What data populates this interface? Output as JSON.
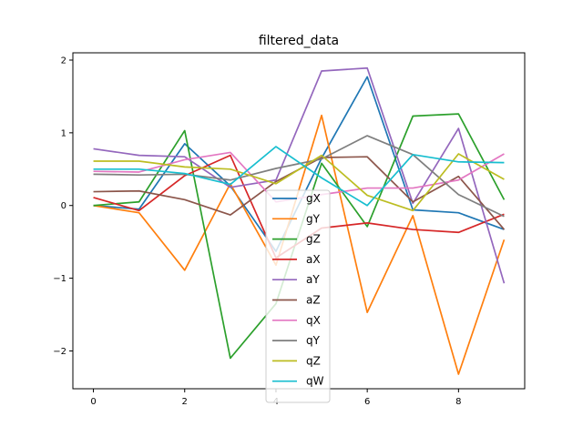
{
  "chart_data": {
    "type": "line",
    "title": "filtered_data",
    "xlabel": "",
    "ylabel": "",
    "xlim": [
      -0.45,
      9.45
    ],
    "ylim": [
      -2.52,
      2.1
    ],
    "xticks": [
      0,
      2,
      4,
      6,
      8
    ],
    "yticks": [
      -2,
      -1,
      0,
      1,
      2
    ],
    "grid": false,
    "legend_position": "bottom-center",
    "x": [
      0,
      1,
      2,
      3,
      4,
      5,
      6,
      7,
      8,
      9
    ],
    "series": [
      {
        "name": "gX",
        "color": "#1f77b4",
        "values": [
          0.0,
          -0.05,
          0.85,
          0.27,
          -0.63,
          0.65,
          1.77,
          -0.06,
          -0.1,
          -0.33
        ]
      },
      {
        "name": "gY",
        "color": "#ff7f0e",
        "values": [
          0.0,
          -0.1,
          -0.89,
          0.3,
          -0.82,
          1.24,
          -1.47,
          -0.14,
          -2.32,
          -0.47
        ]
      },
      {
        "name": "gZ",
        "color": "#2ca02c",
        "values": [
          0.0,
          0.05,
          1.03,
          -2.1,
          -1.35,
          0.58,
          -0.29,
          1.23,
          1.26,
          0.08
        ]
      },
      {
        "name": "aX",
        "color": "#d62728",
        "values": [
          0.11,
          -0.07,
          0.41,
          0.69,
          -0.72,
          -0.31,
          -0.24,
          -0.33,
          -0.37,
          -0.12
        ]
      },
      {
        "name": "aY",
        "color": "#9467bd",
        "values": [
          0.78,
          0.69,
          0.67,
          0.25,
          0.35,
          1.85,
          1.89,
          0.03,
          1.06,
          -1.07
        ]
      },
      {
        "name": "aZ",
        "color": "#8c564b",
        "values": [
          0.19,
          0.2,
          0.08,
          -0.13,
          0.33,
          0.66,
          0.67,
          0.05,
          0.4,
          -0.33
        ]
      },
      {
        "name": "qX",
        "color": "#e377c2",
        "values": [
          0.47,
          0.46,
          0.63,
          0.73,
          0.05,
          0.15,
          0.24,
          0.24,
          0.35,
          0.71
        ]
      },
      {
        "name": "qY",
        "color": "#7f7f7f",
        "values": [
          0.43,
          0.42,
          0.43,
          0.35,
          0.51,
          0.64,
          0.96,
          0.7,
          0.15,
          -0.15
        ]
      },
      {
        "name": "qZ",
        "color": "#bcbd22",
        "values": [
          0.61,
          0.61,
          0.53,
          0.5,
          0.3,
          0.69,
          0.14,
          -0.07,
          0.71,
          0.36
        ]
      },
      {
        "name": "qW",
        "color": "#17becf",
        "values": [
          0.5,
          0.5,
          0.44,
          0.29,
          0.81,
          0.38,
          0.0,
          0.7,
          0.6,
          0.59
        ]
      }
    ]
  }
}
